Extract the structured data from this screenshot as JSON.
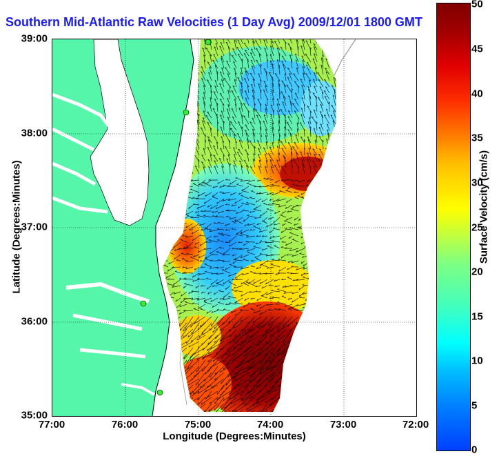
{
  "title": "Southern Mid-Atlantic Raw Velocities (1 Day Avg) 2009/12/01 1800 GMT",
  "x_axis": {
    "label": "Longitude (Degrees:Minutes)",
    "ticks": [
      "77:00",
      "76:00",
      "75:00",
      "74:00",
      "73:00",
      "72:00"
    ]
  },
  "y_axis": {
    "label": "Latitude (Degrees:Minutes)",
    "ticks": [
      "39:00",
      "38:00",
      "37:00",
      "36:00",
      "35:00"
    ]
  },
  "colorbar": {
    "label": "Surface Velocity (cm/s)",
    "ticks": [
      "50",
      "45",
      "40",
      "35",
      "30",
      "25",
      "20",
      "15",
      "10",
      "5",
      "0"
    ],
    "range": [
      0,
      50
    ]
  },
  "colors": {
    "land": "#55f5aa",
    "title": "#1a1aff",
    "radar_site": "#33ee33"
  }
}
